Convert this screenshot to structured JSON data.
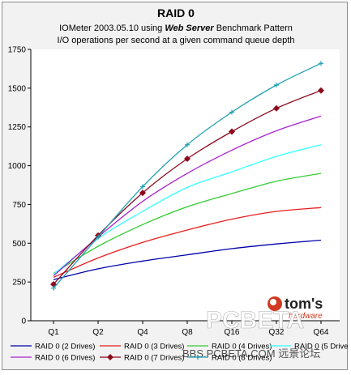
{
  "chart_data": {
    "type": "line",
    "title": "RAID 0",
    "subtitle_prefix": "IOMeter 2003.05.10 using ",
    "subtitle_emph": "Web Server",
    "subtitle_suffix": " Benchmark Pattern",
    "subtitle2": "I/O operations per second at a given command queue depth",
    "categories": [
      "Q1",
      "Q2",
      "Q4",
      "Q8",
      "Q16",
      "Q32",
      "Q64"
    ],
    "ylim": [
      0,
      1750
    ],
    "yticks": [
      0,
      250,
      500,
      750,
      1000,
      1250,
      1500,
      1750
    ],
    "grid": false,
    "legend_position": "bottom",
    "series": [
      {
        "name": "RAID 0 (2 Drives)",
        "color": "#0000aa",
        "marker": "none",
        "values": [
          265,
          335,
          385,
          425,
          465,
          495,
          520
        ]
      },
      {
        "name": "RAID 0 (3 Drives)",
        "color": "#e61e1e",
        "marker": "none",
        "values": [
          280,
          405,
          505,
          585,
          655,
          705,
          730
        ]
      },
      {
        "name": "RAID 0 (4 Drives)",
        "color": "#33cc33",
        "marker": "none",
        "values": [
          305,
          480,
          620,
          735,
          820,
          900,
          950
        ]
      },
      {
        "name": "RAID 0 (5 Drives)",
        "color": "#33ffff",
        "marker": "none",
        "values": [
          300,
          530,
          705,
          860,
          960,
          1060,
          1135
        ]
      },
      {
        "name": "RAID 0 (6 Drives)",
        "color": "#aa22cc",
        "marker": "none",
        "values": [
          290,
          540,
          770,
          950,
          1100,
          1225,
          1320
        ]
      },
      {
        "name": "RAID 0 (7 Drives)",
        "color": "#8b0a1e",
        "marker": "diamond",
        "values": [
          235,
          550,
          825,
          1045,
          1220,
          1370,
          1485
        ]
      },
      {
        "name": "RAID 0 (8 Drives)",
        "color": "#20a0b0",
        "marker": "plus",
        "values": [
          210,
          540,
          865,
          1135,
          1345,
          1520,
          1660
        ]
      }
    ]
  },
  "watermarks": {
    "toms_text": "tom's",
    "toms_sub": "hardware",
    "pcbeta_text": "PCBETA",
    "bbs_text": "BBS.PCBETA.COM 远景论坛"
  }
}
